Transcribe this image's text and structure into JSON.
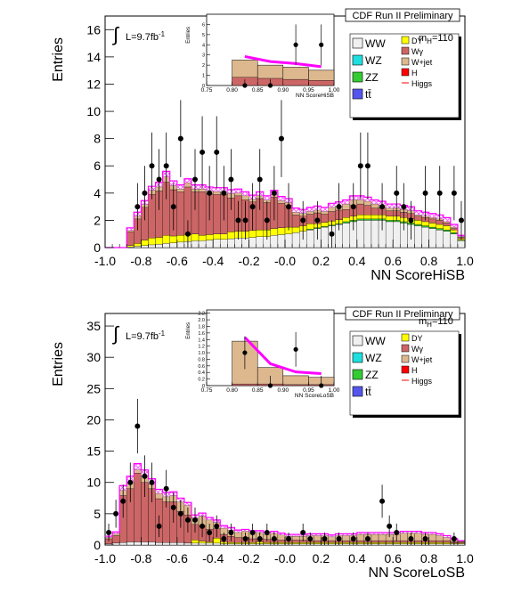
{
  "colors": {
    "WW": "#f0f0f0",
    "WZ": "#1fdede",
    "ZZ": "#33cc33",
    "ttbar": "#5555ee",
    "DY": "#ffff00",
    "Wgamma": "#cc6666",
    "Wjet": "#ddb88e",
    "H": "#ff0000",
    "higgs_line": "#ff00ff",
    "hatch": "#ff66ff"
  },
  "charts": [
    {
      "header": "CDF Run II Preliminary",
      "ylabel": "Entries",
      "xlabel": "NN ScoreHiSB",
      "lumi_prefix": "L=9.7fb",
      "lumi_exp": "-1",
      "mass_label": "m",
      "mass_sub": "H",
      "mass_value": "=110",
      "legend_left": [
        "WW",
        "WZ",
        "ZZ",
        "tt̄"
      ],
      "legend_right": [
        "DY",
        "Wγ",
        "W+jet",
        "H",
        "Higgs"
      ],
      "x_ticks": [
        "-1.0",
        "-0.8",
        "-0.6",
        "-0.4",
        "-0.2",
        "-0.0",
        "0.2",
        "0.4",
        "0.6",
        "0.8",
        "1.0"
      ],
      "y_ticks": [
        "0",
        "2",
        "4",
        "6",
        "8",
        "10",
        "12",
        "14",
        "16"
      ],
      "inset": {
        "ylabel": "Entries",
        "xlabel": "NN ScoreHiSB",
        "x_ticks": [
          "0.75",
          "0.80",
          "0.85",
          "0.90",
          "0.95",
          "1.00"
        ],
        "y_ticks": [
          "0",
          "1",
          "2",
          "3",
          "4",
          "5",
          "6"
        ]
      }
    },
    {
      "header": "CDF Run II Preliminary",
      "ylabel": "Entries",
      "xlabel": "NN ScoreLoSB",
      "lumi_prefix": "L=9.7fb",
      "lumi_exp": "-1",
      "mass_label": "m",
      "mass_sub": "H",
      "mass_value": "=110",
      "legend_left": [
        "WW",
        "WZ",
        "ZZ",
        "tt̄"
      ],
      "legend_right": [
        "DY",
        "Wγ",
        "W+jet",
        "H",
        "Higgs"
      ],
      "x_ticks": [
        "-1.0",
        "-0.8",
        "-0.6",
        "-0.4",
        "-0.2",
        "-0.0",
        "0.2",
        "0.4",
        "0.6",
        "0.8",
        "1.0"
      ],
      "y_ticks": [
        "0",
        "5",
        "10",
        "15",
        "20",
        "25",
        "30",
        "35"
      ],
      "inset": {
        "ylabel": "Entries",
        "xlabel": "NN ScoreLoSB",
        "x_ticks": [
          "0.75",
          "0.80",
          "0.85",
          "0.90",
          "0.95",
          "1.00"
        ],
        "y_ticks": [
          "0",
          "0.2",
          "0.4",
          "0.6",
          "0.8",
          "1.0",
          "1.2",
          "1.4",
          "1.6",
          "1.8",
          "2.0",
          "2.2"
        ]
      }
    }
  ],
  "chart_data": [
    {
      "type": "bar",
      "stacked": true,
      "x_edges_start": -1.0,
      "bin_width": 0.04,
      "xlim": [
        -1.0,
        1.0
      ],
      "ylim": [
        0,
        17
      ],
      "series": [
        {
          "name": "WW",
          "values": [
            0,
            0,
            0,
            0.05,
            0.1,
            0.15,
            0.2,
            0.25,
            0.3,
            0.35,
            0.4,
            0.45,
            0.5,
            0.5,
            0.55,
            0.6,
            0.6,
            0.65,
            0.7,
            0.7,
            0.75,
            0.8,
            0.8,
            0.9,
            0.95,
            1.0,
            1.1,
            1.2,
            1.3,
            1.4,
            1.5,
            1.6,
            1.7,
            1.8,
            1.9,
            2.0,
            2.0,
            2.0,
            2.0,
            1.9,
            1.9,
            1.8,
            1.7,
            1.6,
            1.5,
            1.4,
            1.3,
            1.2,
            1.0,
            0.5
          ]
        },
        {
          "name": "ZZ",
          "values": [
            0,
            0,
            0,
            0,
            0,
            0,
            0,
            0,
            0,
            0,
            0,
            0,
            0,
            0,
            0,
            0,
            0,
            0,
            0,
            0,
            0,
            0,
            0,
            0,
            0,
            0,
            0,
            0,
            0.05,
            0.05,
            0.05,
            0.05,
            0.05,
            0.1,
            0.1,
            0.1,
            0.1,
            0.1,
            0.1,
            0.1,
            0.1,
            0.1,
            0.1,
            0.1,
            0.1,
            0.1,
            0.1,
            0.1,
            0.1,
            0.05
          ]
        },
        {
          "name": "DY",
          "values": [
            0,
            0,
            0,
            0.1,
            0.2,
            0.4,
            0.5,
            0.5,
            0.6,
            0.5,
            0.5,
            0.5,
            0.5,
            0.4,
            0.4,
            0.4,
            0.4,
            0.5,
            0.5,
            0.5,
            0.5,
            0.5,
            0.5,
            0.5,
            0.5,
            0.5,
            0.4,
            0.4,
            0.4,
            0.3,
            0.3,
            0.3,
            0.3,
            0.3,
            0.3,
            0.3,
            0.3,
            0.3,
            0.3,
            0.3,
            0.3,
            0.3,
            0.3,
            0.3,
            0.3,
            0.3,
            0.3,
            0.3,
            0.2,
            0.1
          ]
        },
        {
          "name": "Wγ",
          "values": [
            0,
            0,
            0,
            1.0,
            1.8,
            2.4,
            3.2,
            3.4,
            3.9,
            3.4,
            3.2,
            3.5,
            3.1,
            3.2,
            3.0,
            2.9,
            2.9,
            2.5,
            2.6,
            2.3,
            2.1,
            2.3,
            2.0,
            2.3,
            1.8,
            1.6,
            0.9,
            0.7,
            0.7,
            0.8,
            0.6,
            0.7,
            0.7,
            0.6,
            0.8,
            0.8,
            0.7,
            0.5,
            0.5,
            0.4,
            0.4,
            0.4,
            0.4,
            0.3,
            0.3,
            0.3,
            0.3,
            0.2,
            0.1,
            0.1
          ]
        },
        {
          "name": "W+jet",
          "values": [
            0,
            0,
            0,
            0.1,
            0.2,
            0.2,
            0.3,
            0.3,
            0.4,
            0.3,
            0.2,
            0.3,
            0.2,
            0.2,
            0.2,
            0.2,
            0.2,
            0.3,
            0.2,
            0.3,
            0.2,
            0.2,
            0.2,
            0.2,
            0.2,
            0.2,
            0.2,
            0.2,
            0.2,
            0.2,
            0.2,
            0.3,
            0.3,
            0.4,
            0.4,
            0.3,
            0.3,
            0.3,
            0.2,
            0.2,
            0.2,
            0.2,
            0.2,
            0.1,
            0.1,
            0.1,
            0.1,
            0.1,
            0.1,
            0.05
          ]
        },
        {
          "name": "Higgs",
          "type": "line",
          "values": [
            0,
            0,
            0,
            0.2,
            0.3,
            0.3,
            0.3,
            0.35,
            0.4,
            0.35,
            0.3,
            0.3,
            0.3,
            0.3,
            0.3,
            0.3,
            0.3,
            0.3,
            0.3,
            0.3,
            0.3,
            0.3,
            0.3,
            0.3,
            0.3,
            0.3,
            0.3,
            0.3,
            0.3,
            0.3,
            0.3,
            0.3,
            0.3,
            0.3,
            0.3,
            0.3,
            0.3,
            0.3,
            0.3,
            0.3,
            0.3,
            0.3,
            0.3,
            0.3,
            0.3,
            0.3,
            0.3,
            0.3,
            0.2,
            0.1
          ]
        }
      ],
      "data_points": [
        {
          "x": -0.82,
          "y": 3
        },
        {
          "x": -0.78,
          "y": 4
        },
        {
          "x": -0.74,
          "y": 6
        },
        {
          "x": -0.7,
          "y": 5
        },
        {
          "x": -0.66,
          "y": 6
        },
        {
          "x": -0.62,
          "y": 3
        },
        {
          "x": -0.58,
          "y": 8
        },
        {
          "x": -0.54,
          "y": 1
        },
        {
          "x": -0.5,
          "y": 5
        },
        {
          "x": -0.46,
          "y": 7
        },
        {
          "x": -0.42,
          "y": 4
        },
        {
          "x": -0.38,
          "y": 7
        },
        {
          "x": -0.34,
          "y": 4
        },
        {
          "x": -0.3,
          "y": 5
        },
        {
          "x": -0.26,
          "y": 2
        },
        {
          "x": -0.22,
          "y": 2
        },
        {
          "x": -0.18,
          "y": 3
        },
        {
          "x": -0.14,
          "y": 5
        },
        {
          "x": -0.1,
          "y": 2
        },
        {
          "x": -0.06,
          "y": 4
        },
        {
          "x": -0.02,
          "y": 8
        },
        {
          "x": 0.02,
          "y": 3
        },
        {
          "x": 0.1,
          "y": 2
        },
        {
          "x": 0.18,
          "y": 2
        },
        {
          "x": 0.26,
          "y": 1
        },
        {
          "x": 0.3,
          "y": 3
        },
        {
          "x": 0.38,
          "y": 3
        },
        {
          "x": 0.42,
          "y": 6
        },
        {
          "x": 0.46,
          "y": 6
        },
        {
          "x": 0.54,
          "y": 3
        },
        {
          "x": 0.62,
          "y": 4
        },
        {
          "x": 0.66,
          "y": 3
        },
        {
          "x": 0.7,
          "y": 2
        },
        {
          "x": 0.78,
          "y": 4
        },
        {
          "x": 0.86,
          "y": 4
        },
        {
          "x": 0.94,
          "y": 4
        },
        {
          "x": 0.98,
          "y": 2
        }
      ],
      "inset": {
        "xlim": [
          0.75,
          1.0
        ],
        "ylim": [
          0,
          7
        ],
        "edges": [
          0.8,
          0.85,
          0.9,
          0.95,
          1.0
        ],
        "total": [
          2.5,
          2.0,
          1.8,
          1.5
        ],
        "wgamma": [
          0.8,
          0.7,
          0.6,
          0.5
        ],
        "data_points": [
          {
            "x": 0.825,
            "y": 0
          },
          {
            "x": 0.875,
            "y": 0
          },
          {
            "x": 0.925,
            "y": 4
          },
          {
            "x": 0.975,
            "y": 4
          }
        ]
      }
    },
    {
      "type": "bar",
      "stacked": true,
      "x_edges_start": -1.0,
      "bin_width": 0.04,
      "xlim": [
        -1.0,
        1.0
      ],
      "ylim": [
        0,
        37
      ],
      "series": [
        {
          "name": "WW",
          "values": [
            0.2,
            0.3,
            0.4,
            0.5,
            0.5,
            0.5,
            0.5,
            0.4,
            0.4,
            0.4,
            0.4,
            0.3,
            0.3,
            0.3,
            0.3,
            0.3,
            0.2,
            0.2,
            0.2,
            0.2,
            0.2,
            0.2,
            0.2,
            0.2,
            0.2,
            0.2,
            0.2,
            0.2,
            0.2,
            0.2,
            0.2,
            0.2,
            0.2,
            0.2,
            0.2,
            0.2,
            0.2,
            0.2,
            0.2,
            0.2,
            0.2,
            0.2,
            0.2,
            0.2,
            0.2,
            0.2,
            0.2,
            0.2,
            0.2,
            0.2
          ]
        },
        {
          "name": "DY",
          "values": [
            0,
            0,
            0,
            0,
            0,
            0,
            0,
            0,
            0,
            0,
            0,
            0,
            0.5,
            0.3,
            0.2,
            0.8,
            0.3,
            0.2,
            0.2,
            0.2,
            0.2,
            0.3,
            0.2,
            0.2,
            0.2,
            0.2,
            0.2,
            0.2,
            0.2,
            0.2,
            0.2,
            0.2,
            0.2,
            0.2,
            0.2,
            0.2,
            0.2,
            0.2,
            0.2,
            0.2,
            0.2,
            0.2,
            0.2,
            0.2,
            0.2,
            0.2,
            0.2,
            0.2,
            0.1,
            0.1
          ]
        },
        {
          "name": "Wγ",
          "values": [
            0.8,
            1.2,
            7.5,
            8.5,
            11.0,
            9.5,
            8.5,
            7.0,
            6.5,
            6.5,
            5.0,
            4.5,
            2.5,
            2.5,
            2.0,
            1.5,
            1.2,
            1.0,
            0.8,
            0.8,
            0.6,
            0.5,
            0.5,
            0.5,
            0.4,
            0.4,
            0.4,
            0.4,
            0.3,
            0.3,
            0.3,
            0.3,
            0.3,
            0.3,
            0.3,
            0.3,
            0.3,
            0.3,
            0.3,
            0.3,
            0.3,
            0.3,
            0.3,
            0.3,
            0.3,
            0.3,
            0.3,
            0.3,
            0.2,
            0.2
          ]
        },
        {
          "name": "W+jet",
          "values": [
            0.2,
            0.3,
            0.8,
            1.0,
            0.5,
            1.0,
            0.8,
            0.8,
            0.8,
            1.0,
            1.5,
            1.5,
            1.0,
            1.5,
            1.5,
            1.0,
            1.0,
            1.0,
            0.8,
            1.0,
            1.0,
            1.0,
            0.8,
            1.0,
            0.8,
            0.6,
            0.6,
            0.6,
            0.8,
            0.8,
            0.8,
            0.6,
            0.8,
            0.8,
            0.8,
            1.0,
            1.0,
            1.0,
            1.0,
            1.0,
            1.0,
            1.2,
            1.2,
            1.2,
            1.0,
            1.0,
            0.8,
            0.5,
            0.3,
            0.1
          ]
        },
        {
          "name": "Higgs",
          "type": "line",
          "values": [
            0.2,
            0.3,
            0.8,
            1.0,
            1.0,
            1.0,
            0.8,
            0.7,
            0.7,
            0.6,
            0.6,
            0.5,
            0.5,
            0.5,
            0.4,
            0.4,
            0.4,
            0.4,
            0.4,
            0.3,
            0.3,
            0.3,
            0.3,
            0.3,
            0.3,
            0.3,
            0.3,
            0.3,
            0.3,
            0.3,
            0.3,
            0.3,
            0.3,
            0.3,
            0.3,
            0.3,
            0.3,
            0.3,
            0.3,
            0.3,
            0.3,
            0.3,
            0.3,
            0.3,
            0.3,
            0.3,
            0.3,
            0.3,
            0.2,
            0.1
          ]
        }
      ],
      "data_points": [
        {
          "x": -0.98,
          "y": 2
        },
        {
          "x": -0.94,
          "y": 5
        },
        {
          "x": -0.9,
          "y": 7
        },
        {
          "x": -0.86,
          "y": 10
        },
        {
          "x": -0.82,
          "y": 19
        },
        {
          "x": -0.78,
          "y": 11
        },
        {
          "x": -0.74,
          "y": 10
        },
        {
          "x": -0.7,
          "y": 3
        },
        {
          "x": -0.66,
          "y": 9
        },
        {
          "x": -0.62,
          "y": 6
        },
        {
          "x": -0.58,
          "y": 5
        },
        {
          "x": -0.54,
          "y": 4
        },
        {
          "x": -0.5,
          "y": 4
        },
        {
          "x": -0.46,
          "y": 3
        },
        {
          "x": -0.42,
          "y": 2
        },
        {
          "x": -0.38,
          "y": 3
        },
        {
          "x": -0.34,
          "y": 1
        },
        {
          "x": -0.3,
          "y": 2
        },
        {
          "x": -0.22,
          "y": 1
        },
        {
          "x": -0.18,
          "y": 2
        },
        {
          "x": -0.14,
          "y": 1
        },
        {
          "x": -0.1,
          "y": 2
        },
        {
          "x": -0.06,
          "y": 1
        },
        {
          "x": 0.02,
          "y": 1
        },
        {
          "x": 0.1,
          "y": 2
        },
        {
          "x": 0.14,
          "y": 1
        },
        {
          "x": 0.22,
          "y": 1
        },
        {
          "x": 0.3,
          "y": 1
        },
        {
          "x": 0.38,
          "y": 1
        },
        {
          "x": 0.46,
          "y": 1
        },
        {
          "x": 0.54,
          "y": 7
        },
        {
          "x": 0.58,
          "y": 3
        },
        {
          "x": 0.62,
          "y": 2
        },
        {
          "x": 0.7,
          "y": 1
        },
        {
          "x": 0.78,
          "y": 1
        },
        {
          "x": 0.94,
          "y": 1
        }
      ],
      "inset": {
        "xlim": [
          0.75,
          1.0
        ],
        "ylim": [
          0,
          2.3
        ],
        "edges": [
          0.8,
          0.85,
          0.9,
          0.95,
          1.0
        ],
        "total": [
          1.35,
          0.55,
          0.3,
          0.25
        ],
        "wgamma": [
          0.05,
          0.05,
          0.03,
          0.03
        ],
        "data_points": [
          {
            "x": 0.825,
            "y": 1.0
          },
          {
            "x": 0.875,
            "y": 0
          },
          {
            "x": 0.925,
            "y": 1.1
          },
          {
            "x": 0.975,
            "y": 0
          }
        ]
      }
    }
  ]
}
